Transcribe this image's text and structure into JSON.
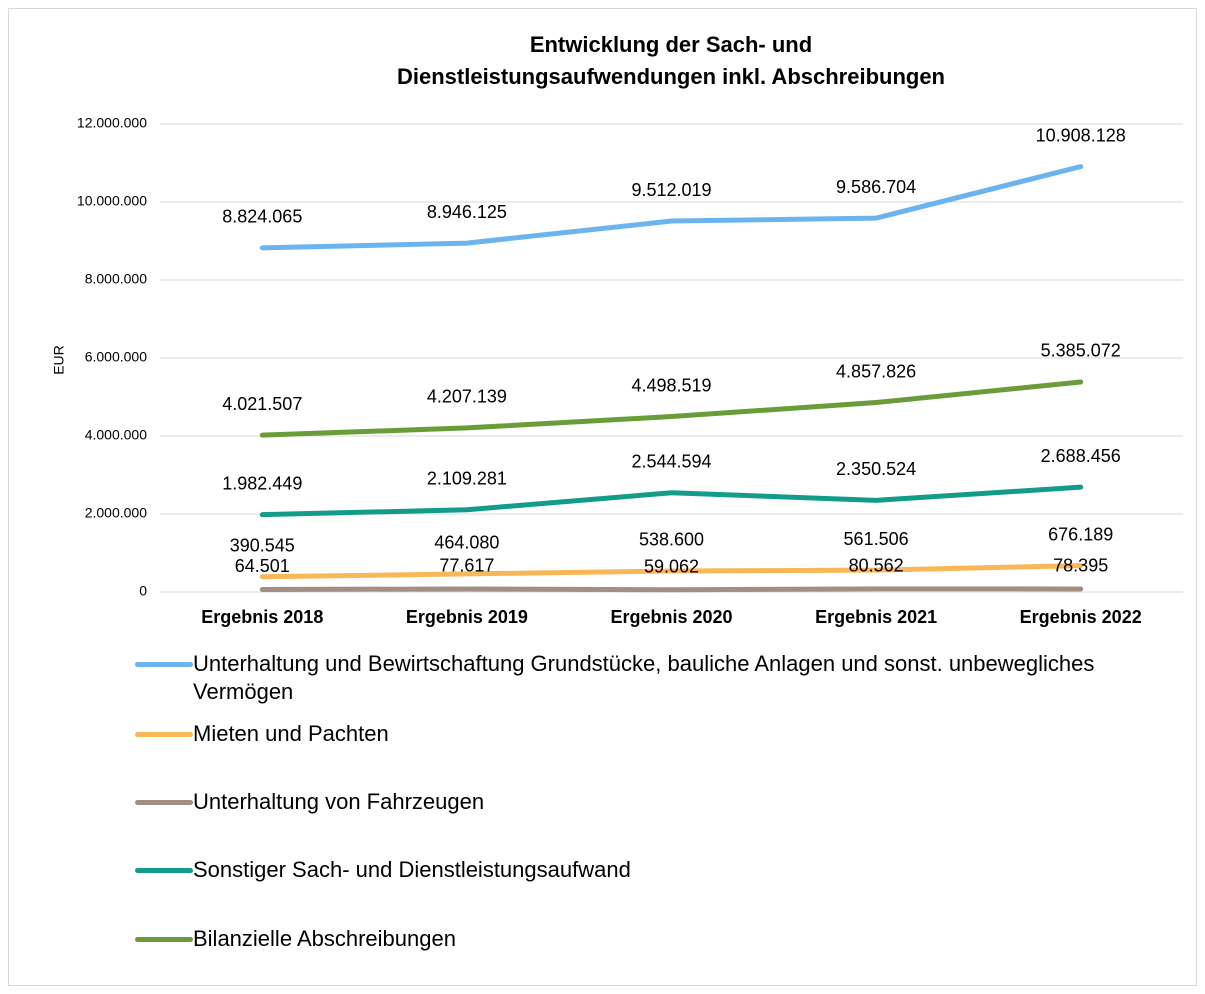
{
  "chart_data": {
    "type": "line",
    "title": [
      "Entwicklung der Sach- und",
      "Dienstleistungsaufwendungen inkl. Abschreibungen"
    ],
    "y_label": "EUR",
    "categories": [
      "Ergebnis 2018",
      "Ergebnis 2019",
      "Ergebnis 2020",
      "Ergebnis 2021",
      "Ergebnis 2022"
    ],
    "ylim": [
      0,
      12000000
    ],
    "yticks": [
      0,
      {
        "value": 2000000,
        "label": "2.000.000"
      },
      {
        "value": 4000000,
        "label": "4.000.000"
      },
      {
        "value": 6000000,
        "label": "6.000.000"
      },
      {
        "value": 8000000,
        "label": "8.000.000"
      },
      {
        "value": 10000000,
        "label": "10.000.000"
      },
      {
        "value": 12000000,
        "label": "12.000.000"
      }
    ],
    "grid": true,
    "series": [
      {
        "name": "Unterhaltung und Bewirtschaftung Grundstücke, bauliche Anlagen und sonst. unbewegliches Vermögen",
        "color": "#6cb4ee",
        "values": [
          8824065,
          8946125,
          9512019,
          9586704,
          10908128
        ],
        "value_labels": [
          "8.824.065",
          "8.946.125",
          "9.512.019",
          "9.586.704",
          "10.908.128"
        ]
      },
      {
        "name": "Mieten und Pachten",
        "color": "#f9b858",
        "values": [
          390545,
          464080,
          538600,
          561506,
          676189
        ],
        "value_labels": [
          "390.545",
          "464.080",
          "538.600",
          "561.506",
          "676.189"
        ]
      },
      {
        "name": "Unterhaltung von Fahrzeugen",
        "color": "#a38e85",
        "values": [
          64501,
          77617,
          59062,
          80562,
          78395
        ],
        "value_labels": [
          "64.501",
          "77.617",
          "59.062",
          "80.562",
          "78.395"
        ]
      },
      {
        "name": "Sonstiger Sach- und Dienstleistungsaufwand",
        "color": "#139c8c",
        "values": [
          1982449,
          2109281,
          2544594,
          2350524,
          2688456
        ],
        "value_labels": [
          "1.982.449",
          "2.109.281",
          "2.544.594",
          "2.350.524",
          "2.688.456"
        ]
      },
      {
        "name": "Bilanzielle Abschreibungen",
        "color": "#6a9c3a",
        "values": [
          4021507,
          4207139,
          4498519,
          4857826,
          5385072
        ],
        "value_labels": [
          "4.021.507",
          "4.207.139",
          "4.498.519",
          "4.857.826",
          "5.385.072"
        ]
      }
    ]
  }
}
